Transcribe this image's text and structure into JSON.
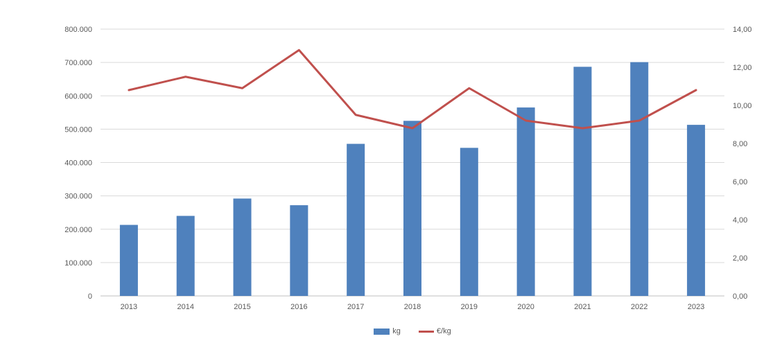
{
  "chart_data": {
    "type": "bar+line",
    "title": "",
    "categories": [
      "2013",
      "2014",
      "2015",
      "2016",
      "2017",
      "2018",
      "2019",
      "2020",
      "2021",
      "2022",
      "2023"
    ],
    "series": [
      {
        "name": "kg",
        "type": "bar",
        "axis": "left",
        "color": "#4F81BD",
        "values": [
          213000,
          240000,
          292000,
          272000,
          456000,
          525000,
          444000,
          565000,
          687000,
          701000,
          513000
        ]
      },
      {
        "name": "€/kg",
        "type": "line",
        "axis": "right",
        "color": "#C0504D",
        "values": [
          10.8,
          11.5,
          10.9,
          12.9,
          9.5,
          8.8,
          10.9,
          9.2,
          8.8,
          9.2,
          10.8
        ]
      }
    ],
    "left_axis": {
      "min": 0,
      "max": 800000,
      "tick_labels": [
        "0",
        "100.000",
        "200.000",
        "300.000",
        "400.000",
        "500.000",
        "600.000",
        "700.000",
        "800.000"
      ]
    },
    "right_axis": {
      "min": 0,
      "max": 14,
      "tick_labels": [
        "0,00",
        "2,00",
        "4,00",
        "6,00",
        "8,00",
        "10,00",
        "12,00",
        "14,00"
      ]
    },
    "grid": true,
    "legend_position": "bottom",
    "colors": {
      "gridline": "#D9D9D9",
      "axis_line": "#BFBFBF",
      "tick_text": "#595959",
      "background": "#FFFFFF"
    }
  }
}
